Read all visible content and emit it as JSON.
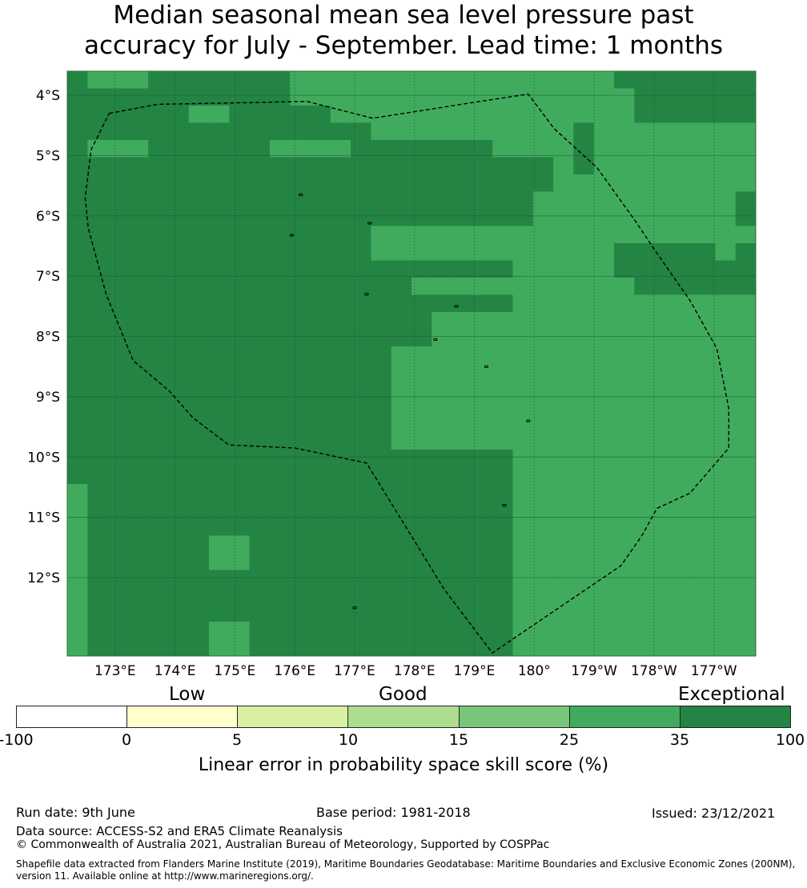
{
  "title": {
    "line1": "Median seasonal mean sea level pressure past",
    "line2": "accuracy for July - September. Lead time: 1 months"
  },
  "colors": {
    "bin_25_35": "#41ab5d",
    "bin_35_100": "#238443",
    "boundary_line": "#000000",
    "gridline": "#1a5e2e"
  },
  "map": {
    "lon_range": [
      172.2,
      183.7
    ],
    "lat_range": [
      -13.3,
      -3.6
    ],
    "lon_ticks": [
      "173°E",
      "174°E",
      "175°E",
      "176°E",
      "177°E",
      "178°E",
      "179°E",
      "180°",
      "179°W",
      "178°W",
      "177°W"
    ],
    "lat_ticks": [
      "4°S",
      "5°S",
      "6°S",
      "7°S",
      "8°S",
      "9°S",
      "10°S",
      "11°S",
      "12°S"
    ],
    "grid_lines": true,
    "cell_size_deg": [
      0.833,
      0.556
    ],
    "cell_levels_legend": "1 = 25-35 %, 2 = 35-100 %",
    "cell_rows": [
      "2111222222211111111111111112222222",
      "2222222222211111111111111111222222",
      "2222221122222111111111111111222222",
      "2222222222222221111111111211111111",
      "2111222222111122222221111211111111",
      "2222222222222222222222221211111111",
      "2222222222222222222222221111111111",
      "2222222222222222222222211111111112",
      "2222222222222222222222211111111112",
      "2222222222222221111111111111111111",
      "2222222222222221111111111112222212",
      "2222222222222222222222111112222222",
      "2222222222222222211111111111222222",
      "2222222222222222222222111111111111",
      "2222222222222222221111111111111111",
      "2222222222222222221111111111111111",
      "2222222222222222111111111111111111",
      "2222222222222222111111111111111111",
      "2222222222222222111111111111111111",
      "2222222222222222111111111111111111",
      "2222222222222222111111111111111111",
      "2222222222222222111111111111111111",
      "2222222222222222222222111111111111",
      "2222222222222222222222111111111111",
      "1222222222222222222222111111111111",
      "1222222222222222222222111111111111",
      "1222222222222222222222111111111111",
      "1222222112222222222222111111111111",
      "1222222112222222222222111111111111",
      "1222222222222222222222111111111111",
      "1222222222222222222222111111111111",
      "1222222222222222222222111111111111",
      "1222222112222222222222111111111111",
      "1222222112222222222222111111111111"
    ],
    "eez_boundary": [
      [
        172.9,
        -4.3
      ],
      [
        173.7,
        -4.15
      ],
      [
        175.3,
        -4.12
      ],
      [
        176.2,
        -4.1
      ],
      [
        177.3,
        -4.38
      ],
      [
        179.1,
        -4.1
      ],
      [
        179.9,
        -3.98
      ],
      [
        180.33,
        -4.55
      ],
      [
        181.05,
        -5.2
      ],
      [
        181.7,
        -6.1
      ],
      [
        182.0,
        -6.55
      ],
      [
        182.6,
        -7.4
      ],
      [
        183.05,
        -8.2
      ],
      [
        183.25,
        -9.2
      ],
      [
        183.25,
        -9.85
      ],
      [
        182.6,
        -10.6
      ],
      [
        182.05,
        -10.85
      ],
      [
        181.8,
        -11.3
      ],
      [
        181.45,
        -11.8
      ],
      [
        179.3,
        -13.25
      ],
      [
        178.5,
        -12.2
      ],
      [
        177.2,
        -10.1
      ],
      [
        176.0,
        -9.85
      ],
      [
        174.9,
        -9.8
      ],
      [
        174.3,
        -9.35
      ],
      [
        173.9,
        -8.9
      ],
      [
        173.3,
        -8.4
      ],
      [
        172.85,
        -7.3
      ],
      [
        172.55,
        -6.2
      ],
      [
        172.5,
        -5.7
      ],
      [
        172.6,
        -4.9
      ],
      [
        172.9,
        -4.3
      ]
    ],
    "islands": [
      [
        176.1,
        -5.65
      ],
      [
        177.25,
        -6.12
      ],
      [
        175.95,
        -6.32
      ],
      [
        177.2,
        -7.3
      ],
      [
        178.7,
        -7.5
      ],
      [
        178.35,
        -8.05
      ],
      [
        179.2,
        -8.5
      ],
      [
        179.9,
        -9.4
      ],
      [
        179.5,
        -10.8
      ],
      [
        177.0,
        -12.5
      ]
    ]
  },
  "colorbar": {
    "categories": {
      "low": "Low",
      "good": "Good",
      "exceptional": "Exceptional"
    },
    "bounds": [
      "-100",
      "0",
      "5",
      "10",
      "15",
      "25",
      "35",
      "100"
    ],
    "colors": [
      "#ffffff",
      "#ffffcc",
      "#d9f0a3",
      "#addd8e",
      "#78c679",
      "#41ab5d",
      "#238443"
    ],
    "label": "Linear error in probability space skill score (%)"
  },
  "footer": {
    "run_date": "Run date: 9th June",
    "base_period": "Base period: 1981-2018",
    "issued": "Issued: 23/12/2021",
    "data_source": "Data source: ACCESS-S2 and ERA5 Climate Reanalysis",
    "copyright": "© Commonwealth of Australia 2021, Australian Bureau of Meteorology, Supported by COSPPac",
    "shapefile": "Shapefile data extracted from Flanders Marine Institute (2019), Maritime Boundaries Geodatabase: Maritime Boundaries and Exclusive Economic Zones (200NM), version 11. Available online at http://www.marineregions.org/."
  }
}
